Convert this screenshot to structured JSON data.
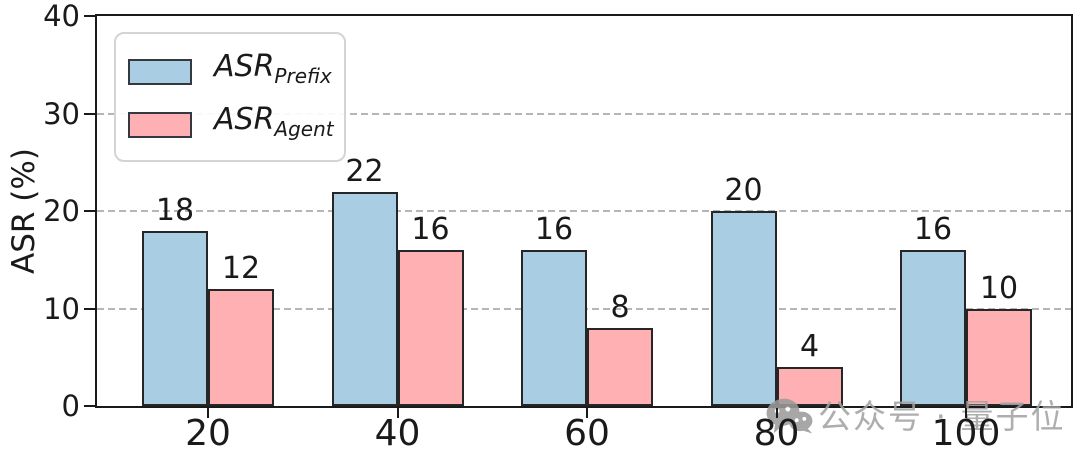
{
  "chart_data": {
    "type": "bar",
    "title": "",
    "xlabel": "",
    "ylabel": "ASR (%)",
    "categories": [
      "20",
      "40",
      "60",
      "80",
      "100"
    ],
    "series": [
      {
        "name": "ASR_Prefix",
        "label_main": "ASR",
        "label_sub": "Prefix",
        "color": "#a9cde3",
        "values": [
          18,
          22,
          16,
          20,
          16
        ]
      },
      {
        "name": "ASR_Agent",
        "label_main": "ASR",
        "label_sub": "Agent",
        "color": "#ffb0b3",
        "values": [
          12,
          16,
          8,
          4,
          10
        ]
      }
    ],
    "ylim": [
      0,
      40
    ],
    "yticks": [
      0,
      10,
      20,
      30,
      40
    ],
    "grid": "horizontal-dashed",
    "grid_color": "#b5b5b5",
    "bar_edge_color": "#262626",
    "legend_position": "upper-left"
  },
  "watermark": {
    "icon": "wechat-icon",
    "text": "公众号 · 量子位",
    "color": "#a3a3a3"
  }
}
